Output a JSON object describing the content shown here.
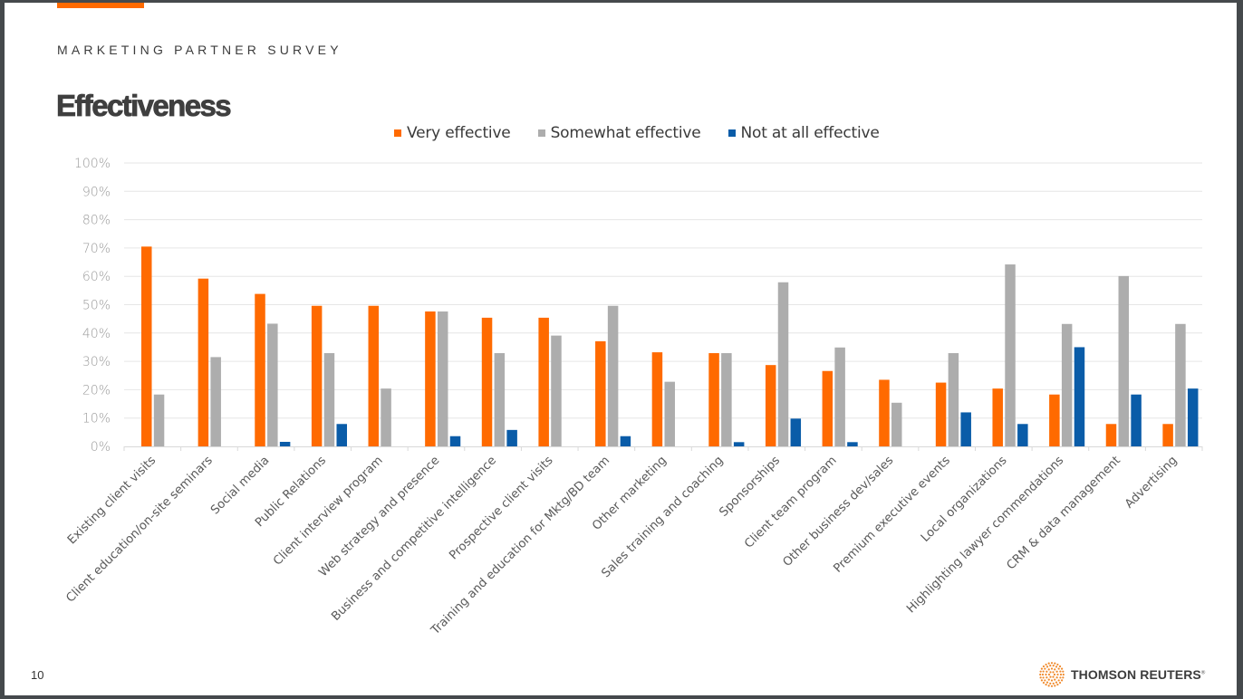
{
  "header": {
    "eyebrow": "MARKETING PARTNER SURVEY",
    "title": "Effectiveness"
  },
  "footer": {
    "page_number": "10",
    "brand": "THOMSON REUTERS",
    "brand_mark": "®"
  },
  "colors": {
    "accent": "#ff6a00",
    "very": "#ff6a00",
    "somewhat": "#adadad",
    "not": "#0a5ca8",
    "grid": "#e6e6e6"
  },
  "chart_data": {
    "type": "bar",
    "title": "Effectiveness",
    "xlabel": "",
    "ylabel": "",
    "ylim": [
      0,
      100
    ],
    "y_ticks": [
      "0%",
      "10%",
      "20%",
      "30%",
      "40%",
      "50%",
      "60%",
      "70%",
      "80%",
      "90%",
      "100%"
    ],
    "grid": true,
    "legend_position": "top-center",
    "categories": [
      "Existing client visits",
      "Client education/on-site seminars",
      "Social media",
      "Public Relations",
      "Client interview program",
      "Web strategy and presence",
      "Business and competitive intelligence",
      "Prospective client visits",
      "Training and education for Mktg/BD team",
      "Other marketing",
      "Sales training and coaching",
      "Sponsorships",
      "Client team program",
      "Other business dev/sales",
      "Premium executive events",
      "Local organizations",
      "Highlighting lawyer commendations",
      "CRM & data management",
      "Advertising"
    ],
    "series": [
      {
        "name": "Very effective",
        "color": "#ff6a00",
        "values": [
          70.5,
          59.2,
          53.8,
          49.6,
          49.6,
          47.6,
          45.4,
          45.4,
          37.1,
          33.2,
          32.9,
          28.7,
          26.6,
          23.5,
          22.5,
          20.4,
          18.3,
          7.9,
          7.9
        ]
      },
      {
        "name": "Somewhat effective",
        "color": "#adadad",
        "values": [
          18.3,
          31.5,
          43.3,
          32.9,
          20.4,
          47.6,
          32.9,
          39.1,
          49.6,
          22.8,
          32.9,
          57.9,
          34.9,
          15.4,
          32.9,
          64.2,
          43.2,
          60.1,
          43.2
        ]
      },
      {
        "name": "Not at all effective",
        "color": "#0a5ca8",
        "values": [
          0,
          0,
          1.6,
          7.9,
          0,
          3.6,
          5.8,
          0,
          3.6,
          0,
          1.5,
          9.8,
          1.5,
          0,
          12.0,
          7.9,
          35.0,
          18.3,
          20.4
        ]
      }
    ]
  }
}
